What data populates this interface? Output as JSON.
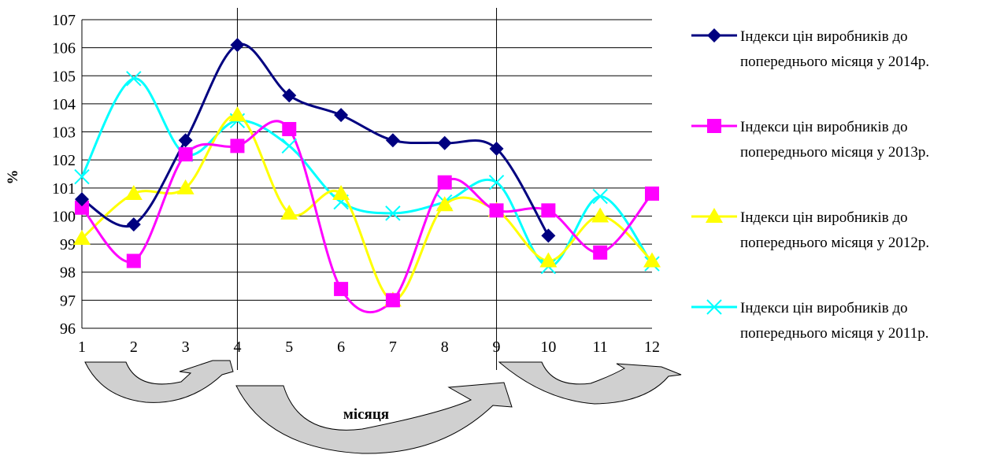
{
  "chart_data": {
    "type": "line",
    "x": [
      1,
      2,
      3,
      4,
      5,
      6,
      7,
      8,
      9,
      10,
      11,
      12
    ],
    "xlabel": "місяця",
    "ylabel": "%",
    "ylim": [
      96,
      107
    ],
    "yticks": [
      96,
      97,
      98,
      99,
      100,
      101,
      102,
      103,
      104,
      105,
      106,
      107
    ],
    "grid": "horizontal",
    "legend_position": "right",
    "series": [
      {
        "name_line1": "Індекси цін виробників до",
        "name_line2": "попереднього місяця у 2014р.",
        "color": "#000080",
        "marker": "diamond",
        "values": [
          100.6,
          99.7,
          102.7,
          106.1,
          104.3,
          103.6,
          102.7,
          102.6,
          102.4,
          99.3,
          null,
          null
        ]
      },
      {
        "name_line1": "Індекси цін виробників до",
        "name_line2": "попереднього місяця у 2013р.",
        "color": "#FF00FF",
        "marker": "square",
        "values": [
          100.3,
          98.4,
          102.2,
          102.5,
          103.1,
          97.4,
          97.0,
          101.2,
          100.2,
          100.2,
          98.7,
          100.8
        ]
      },
      {
        "name_line1": "Індекси цін виробників до",
        "name_line2": "попереднього місяця у 2012р.",
        "color": "#FFFF00",
        "marker": "triangle",
        "values": [
          99.2,
          100.8,
          101.0,
          103.6,
          100.1,
          100.8,
          97.0,
          100.4,
          100.2,
          98.4,
          100.0,
          98.4
        ]
      },
      {
        "name_line1": "Індекси цін виробників до",
        "name_line2": "попереднього місяця у 2011р.",
        "color": "#00FFFF",
        "marker": "x",
        "values": [
          101.4,
          104.9,
          102.2,
          103.4,
          102.5,
          100.5,
          100.1,
          100.5,
          101.2,
          98.2,
          100.7,
          98.3
        ]
      }
    ]
  }
}
